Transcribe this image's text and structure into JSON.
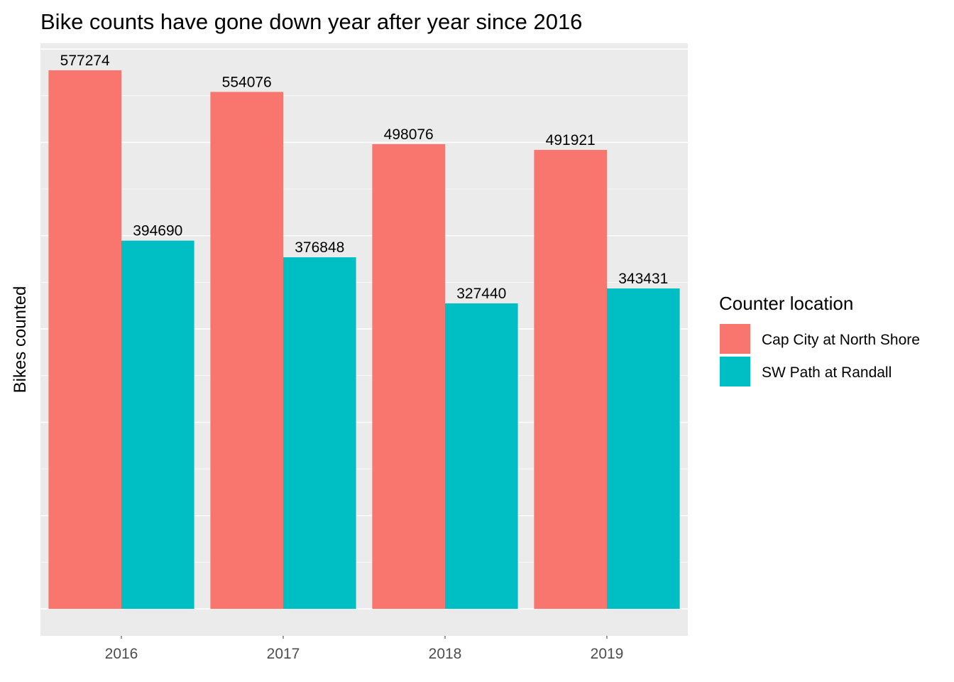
{
  "chart_data": {
    "type": "bar",
    "title": "Bike counts have gone down year after year since 2016",
    "xlabel": "",
    "ylabel": "Bikes counted",
    "categories": [
      "2016",
      "2017",
      "2018",
      "2019"
    ],
    "series": [
      {
        "name": "Cap City at North Shore",
        "color": "#F8766D",
        "values": [
          577274,
          554076,
          498076,
          491921
        ]
      },
      {
        "name": "SW Path at Randall",
        "color": "#00BFC4",
        "values": [
          394690,
          376848,
          327440,
          343431
        ]
      }
    ],
    "ylim": [
      -28864,
      606138
    ],
    "y_gridlines": [
      0,
      100000,
      200000,
      300000,
      400000,
      500000,
      600000
    ],
    "y_tick_labels_shown": false,
    "grid": true,
    "panel_background": "#EBEBEB",
    "gridline_color": "#FFFFFF",
    "legend": {
      "title": "Counter location",
      "position": "right"
    }
  }
}
